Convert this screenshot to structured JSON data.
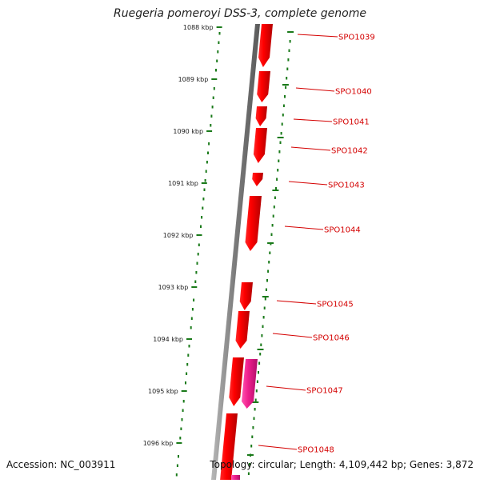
{
  "title": "Ruegeria pomeroyi DSS-3, complete genome",
  "accession": "Accession: NC_003911",
  "summary": "Topology: circular; Length: 4,109,442 bp; Genes: 3,872",
  "colors": {
    "backbone": "#8a8a8a",
    "gene_forward": "#e80000",
    "gene_other": "#f02090",
    "tick": "#1a7a1a",
    "label": "#d40000"
  },
  "scale": {
    "unit": "kbp",
    "ticks": [
      "1088 kbp",
      "1089 kbp",
      "1090 kbp",
      "1091 kbp",
      "1092 kbp",
      "1093 kbp",
      "1094 kbp",
      "1095 kbp",
      "1096 kbp"
    ]
  },
  "genes": [
    {
      "name": "SPO1039",
      "strand": "+",
      "color": "gene_forward"
    },
    {
      "name": "SPO1040",
      "strand": "+",
      "color": "gene_forward"
    },
    {
      "name": "SPO1041",
      "strand": "+",
      "color": "gene_forward"
    },
    {
      "name": "SPO1042",
      "strand": "+",
      "color": "gene_forward"
    },
    {
      "name": "SPO1043",
      "strand": "+",
      "color": "gene_forward"
    },
    {
      "name": "SPO1044",
      "strand": "+",
      "color": "gene_forward"
    },
    {
      "name": "SPO1045",
      "strand": "+",
      "color": "gene_forward"
    },
    {
      "name": "SPO1046",
      "strand": "+",
      "color": "gene_forward"
    },
    {
      "name": "SPO1047",
      "strand": "+",
      "color": "gene_other"
    },
    {
      "name": "SPO1048",
      "strand": "+",
      "color": "gene_forward"
    }
  ]
}
